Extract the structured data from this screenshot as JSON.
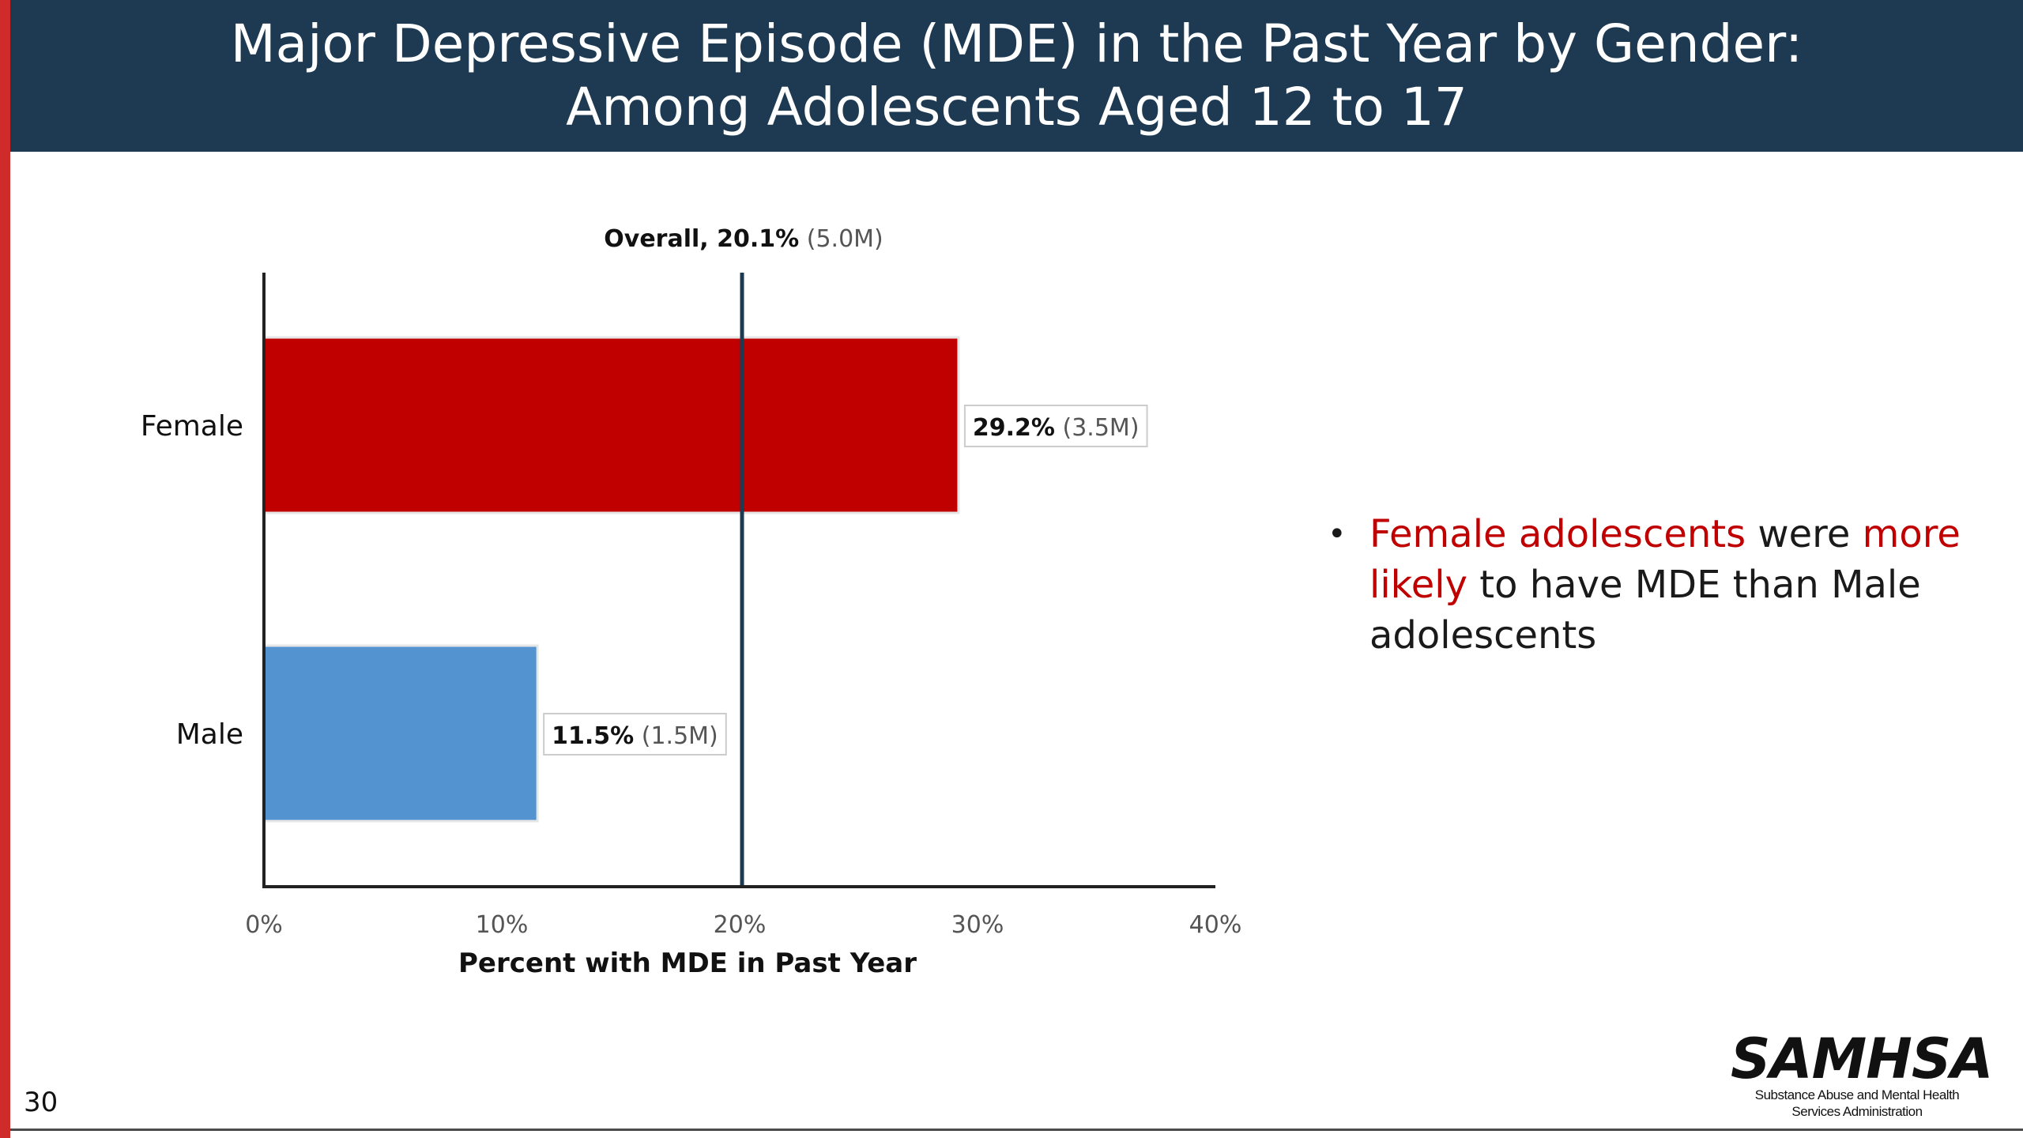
{
  "slide": {
    "title_line1": "Major Depressive Episode (MDE) in the Past Year by Gender:",
    "title_line2": "Among Adolescents Aged 12 to 17",
    "number": "30",
    "accent_color": "#d02b2b",
    "header_color": "#1e3a52"
  },
  "bullet": {
    "segments": [
      {
        "text": "Female adolescents",
        "highlight": true
      },
      {
        "text": " were ",
        "highlight": false
      },
      {
        "text": "more likely",
        "highlight": true
      },
      {
        "text": " to have MDE than Male adolescents",
        "highlight": false
      }
    ],
    "highlight_color": "#c00000"
  },
  "logo": {
    "name": "SAMHSA",
    "subtitle_line1": "Substance Abuse and Mental Health",
    "subtitle_line2": "Services Administration"
  },
  "chart_data": {
    "type": "bar",
    "orientation": "horizontal",
    "categories": [
      "Female",
      "Male"
    ],
    "values": [
      29.2,
      11.5
    ],
    "value_labels": [
      "29.2%",
      "11.5%"
    ],
    "count_labels": [
      "(3.5M)",
      "(1.5M)"
    ],
    "colors": [
      "#c00000",
      "#5393d0"
    ],
    "xlabel": "Percent with MDE in Past Year",
    "ylabel": "",
    "xlim": [
      0,
      40
    ],
    "xticks": [
      0,
      10,
      20,
      30,
      40
    ],
    "xtick_labels": [
      "0%",
      "10%",
      "20%",
      "30%",
      "40%"
    ],
    "reference_line": {
      "value": 20.1,
      "label": "Overall, 20.1%",
      "count_label": "(5.0M)"
    },
    "grid": false,
    "legend": "none"
  }
}
